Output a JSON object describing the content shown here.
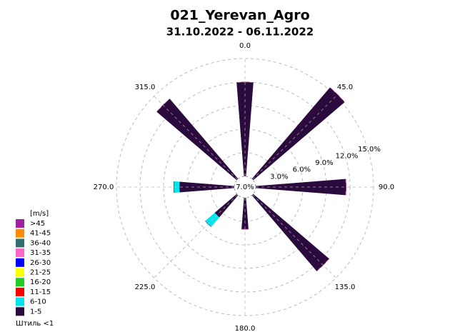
{
  "chart_data": {
    "type": "windrose",
    "title": "021_Yerevan_Agro",
    "subtitle": "31.10.2022 - 06.11.2022",
    "legend_title": "[m/s]",
    "calm_label": "Штиль <1",
    "calm": 7.0,
    "calm_value_label": "7.0%",
    "directions": [
      0,
      45,
      90,
      135,
      180,
      225,
      270,
      315
    ],
    "series": [
      {
        "name": "1-5",
        "color": "#2b0a3d",
        "values": [
          12.0,
          15.3,
          11.5,
          12.7,
          4.0,
          3.7,
          7.0,
          13.4
        ]
      },
      {
        "name": "6-10",
        "color": "#00e5ee",
        "values": [
          0,
          0,
          0,
          0,
          0,
          1.6,
          0.7,
          0
        ]
      },
      {
        "name": "11-15",
        "color": "#ff0000",
        "values": [
          0,
          0,
          0,
          0,
          0,
          0,
          0,
          0
        ]
      },
      {
        "name": "16-20",
        "color": "#22cc22",
        "values": [
          0,
          0,
          0,
          0,
          0,
          0,
          0,
          0
        ]
      },
      {
        "name": "21-25",
        "color": "#ffff00",
        "values": [
          0,
          0,
          0,
          0,
          0,
          0,
          0,
          0
        ]
      },
      {
        "name": "26-30",
        "color": "#0000ff",
        "values": [
          0,
          0,
          0,
          0,
          0,
          0,
          0,
          0
        ]
      },
      {
        "name": "31-35",
        "color": "#ff66cc",
        "values": [
          0,
          0,
          0,
          0,
          0,
          0,
          0,
          0
        ]
      },
      {
        "name": "36-40",
        "color": "#2f6f6f",
        "values": [
          0,
          0,
          0,
          0,
          0,
          0,
          0,
          0
        ]
      },
      {
        "name": "41-45",
        "color": "#ff8c00",
        "values": [
          0,
          0,
          0,
          0,
          0,
          0,
          0,
          0
        ]
      },
      {
        "name": ">45",
        "color": "#a020a0",
        "values": [
          0,
          0,
          0,
          0,
          0,
          0,
          0,
          0
        ]
      }
    ],
    "rlim": [
      0,
      15
    ],
    "rticks": [
      {
        "value": 3,
        "label": "3.0%"
      },
      {
        "value": 6,
        "label": "6.0%"
      },
      {
        "value": 9,
        "label": "9.0%"
      },
      {
        "value": 12,
        "label": "12.0%"
      },
      {
        "value": 15,
        "label": "15.0%"
      }
    ],
    "theta_ticks": [
      {
        "value": 0,
        "label": "0.0"
      },
      {
        "value": 45,
        "label": "45.0"
      },
      {
        "value": 90,
        "label": "90.0"
      },
      {
        "value": 135,
        "label": "135.0"
      },
      {
        "value": 180,
        "label": "180.0"
      },
      {
        "value": 225,
        "label": "225.0"
      },
      {
        "value": 270,
        "label": "270.0"
      },
      {
        "value": 315,
        "label": "315.0"
      }
    ],
    "grid": true
  }
}
